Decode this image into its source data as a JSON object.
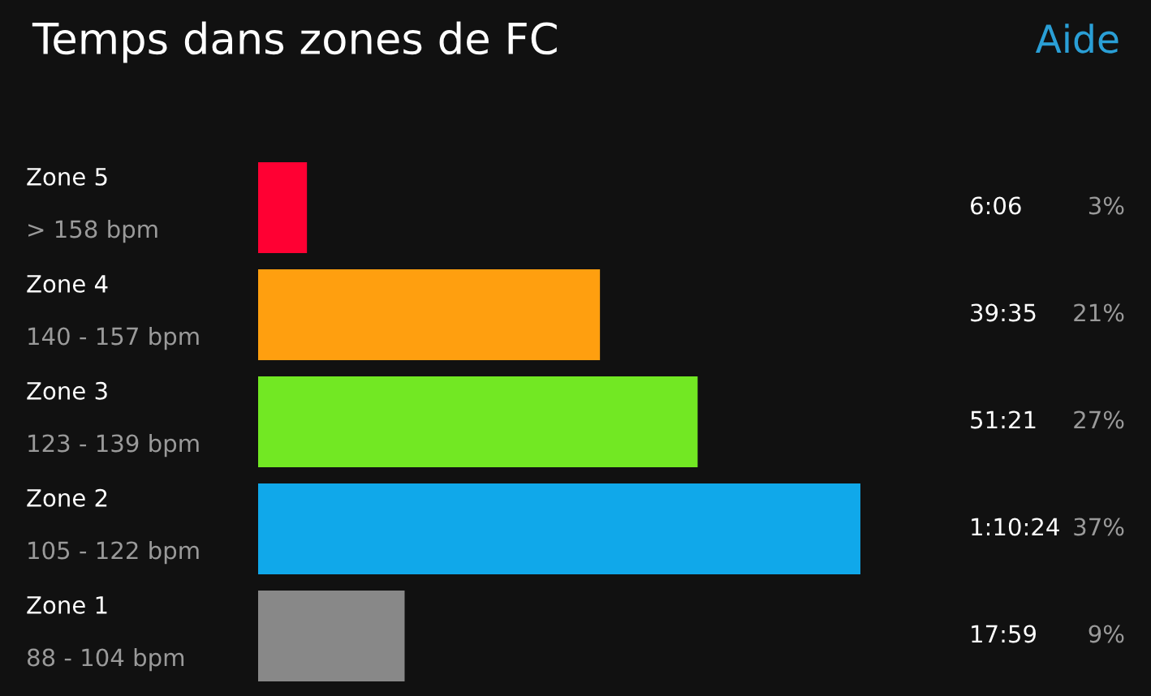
{
  "chart_data": {
    "type": "bar",
    "orientation": "horizontal",
    "title": "Temps dans zones de FC",
    "categories": [
      "Zone 5\n> 158 bpm",
      "Zone 4\n140 - 157 bpm",
      "Zone 3\n123 - 139 bpm",
      "Zone 2\n105 - 122 bpm",
      "Zone 1\n88 - 104 bpm"
    ],
    "values": [
      3,
      21,
      27,
      37,
      9
    ],
    "value_labels": [
      "3%",
      "21%",
      "27%",
      "37%",
      "9%"
    ],
    "colors": [
      "#ff0033",
      "#ff9f0f",
      "#72e823",
      "#10a8ea",
      "#888888"
    ],
    "annotations": [
      "Aide",
      "6:06",
      "39:35",
      "51:21",
      "1:10:24",
      "17:59"
    ]
  }
}
